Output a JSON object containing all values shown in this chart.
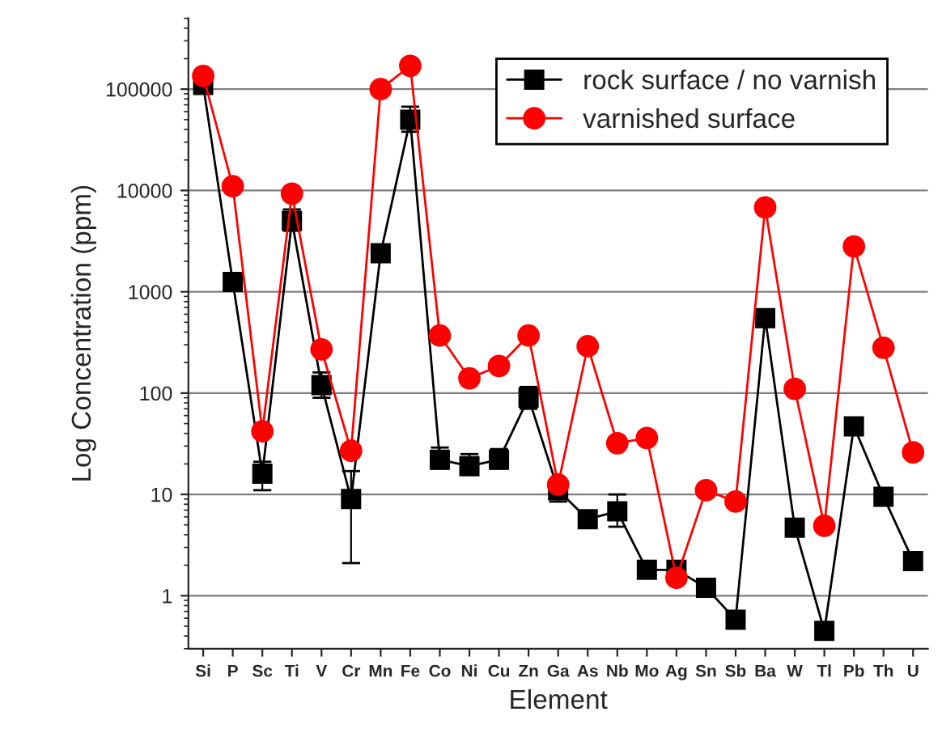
{
  "chart_data": {
    "type": "line",
    "xlabel": "Element",
    "ylabel": "Log Concentration (ppm)",
    "log": "y",
    "grid": "y",
    "legend": "top right",
    "categories": [
      "Si",
      "P",
      "Sc",
      "Ti",
      "V",
      "Cr",
      "Mn",
      "Fe",
      "Co",
      "Ni",
      "Cu",
      "Zn",
      "Ga",
      "As",
      "Nb",
      "Mo",
      "Ag",
      "Sn",
      "Sb",
      "Ba",
      "W",
      "Tl",
      "Pb",
      "Th",
      "U"
    ],
    "ylim": [
      0.3,
      500000
    ],
    "yticks": [
      1,
      10,
      100,
      1000,
      10000,
      100000
    ],
    "series": [
      {
        "name": "rock surface / no varnish",
        "color": "#000000",
        "marker": "square",
        "values": [
          110000,
          1250,
          16,
          5000,
          120,
          9,
          2400,
          50000,
          22,
          19,
          22,
          90,
          11,
          5.7,
          6.8,
          1.8,
          1.8,
          1.2,
          0.58,
          550,
          4.7,
          0.45,
          47,
          9.5,
          2.2
        ],
        "errors": [
          [
            100000,
            120000
          ],
          null,
          [
            11,
            21
          ],
          [
            4000,
            6500
          ],
          [
            90,
            160
          ],
          [
            2.1,
            17
          ],
          [
            2000,
            2800
          ],
          [
            38000,
            67000
          ],
          [
            18,
            29
          ],
          [
            16,
            25
          ],
          [
            18,
            28
          ],
          [
            70,
            115
          ],
          [
            8.5,
            11
          ],
          [
            5,
            6.5
          ],
          [
            4.8,
            10
          ],
          null,
          null,
          null,
          null,
          null,
          null,
          null,
          null,
          null,
          null
        ]
      },
      {
        "name": "varnished surface",
        "color": "#ff0000",
        "marker": "circle",
        "values": [
          135000,
          11000,
          42,
          9300,
          270,
          27,
          100000,
          170000,
          370,
          140,
          185,
          370,
          12.5,
          290,
          32,
          36,
          1.5,
          11,
          8.5,
          6800,
          110,
          4.9,
          2800,
          280,
          26
        ]
      }
    ]
  }
}
